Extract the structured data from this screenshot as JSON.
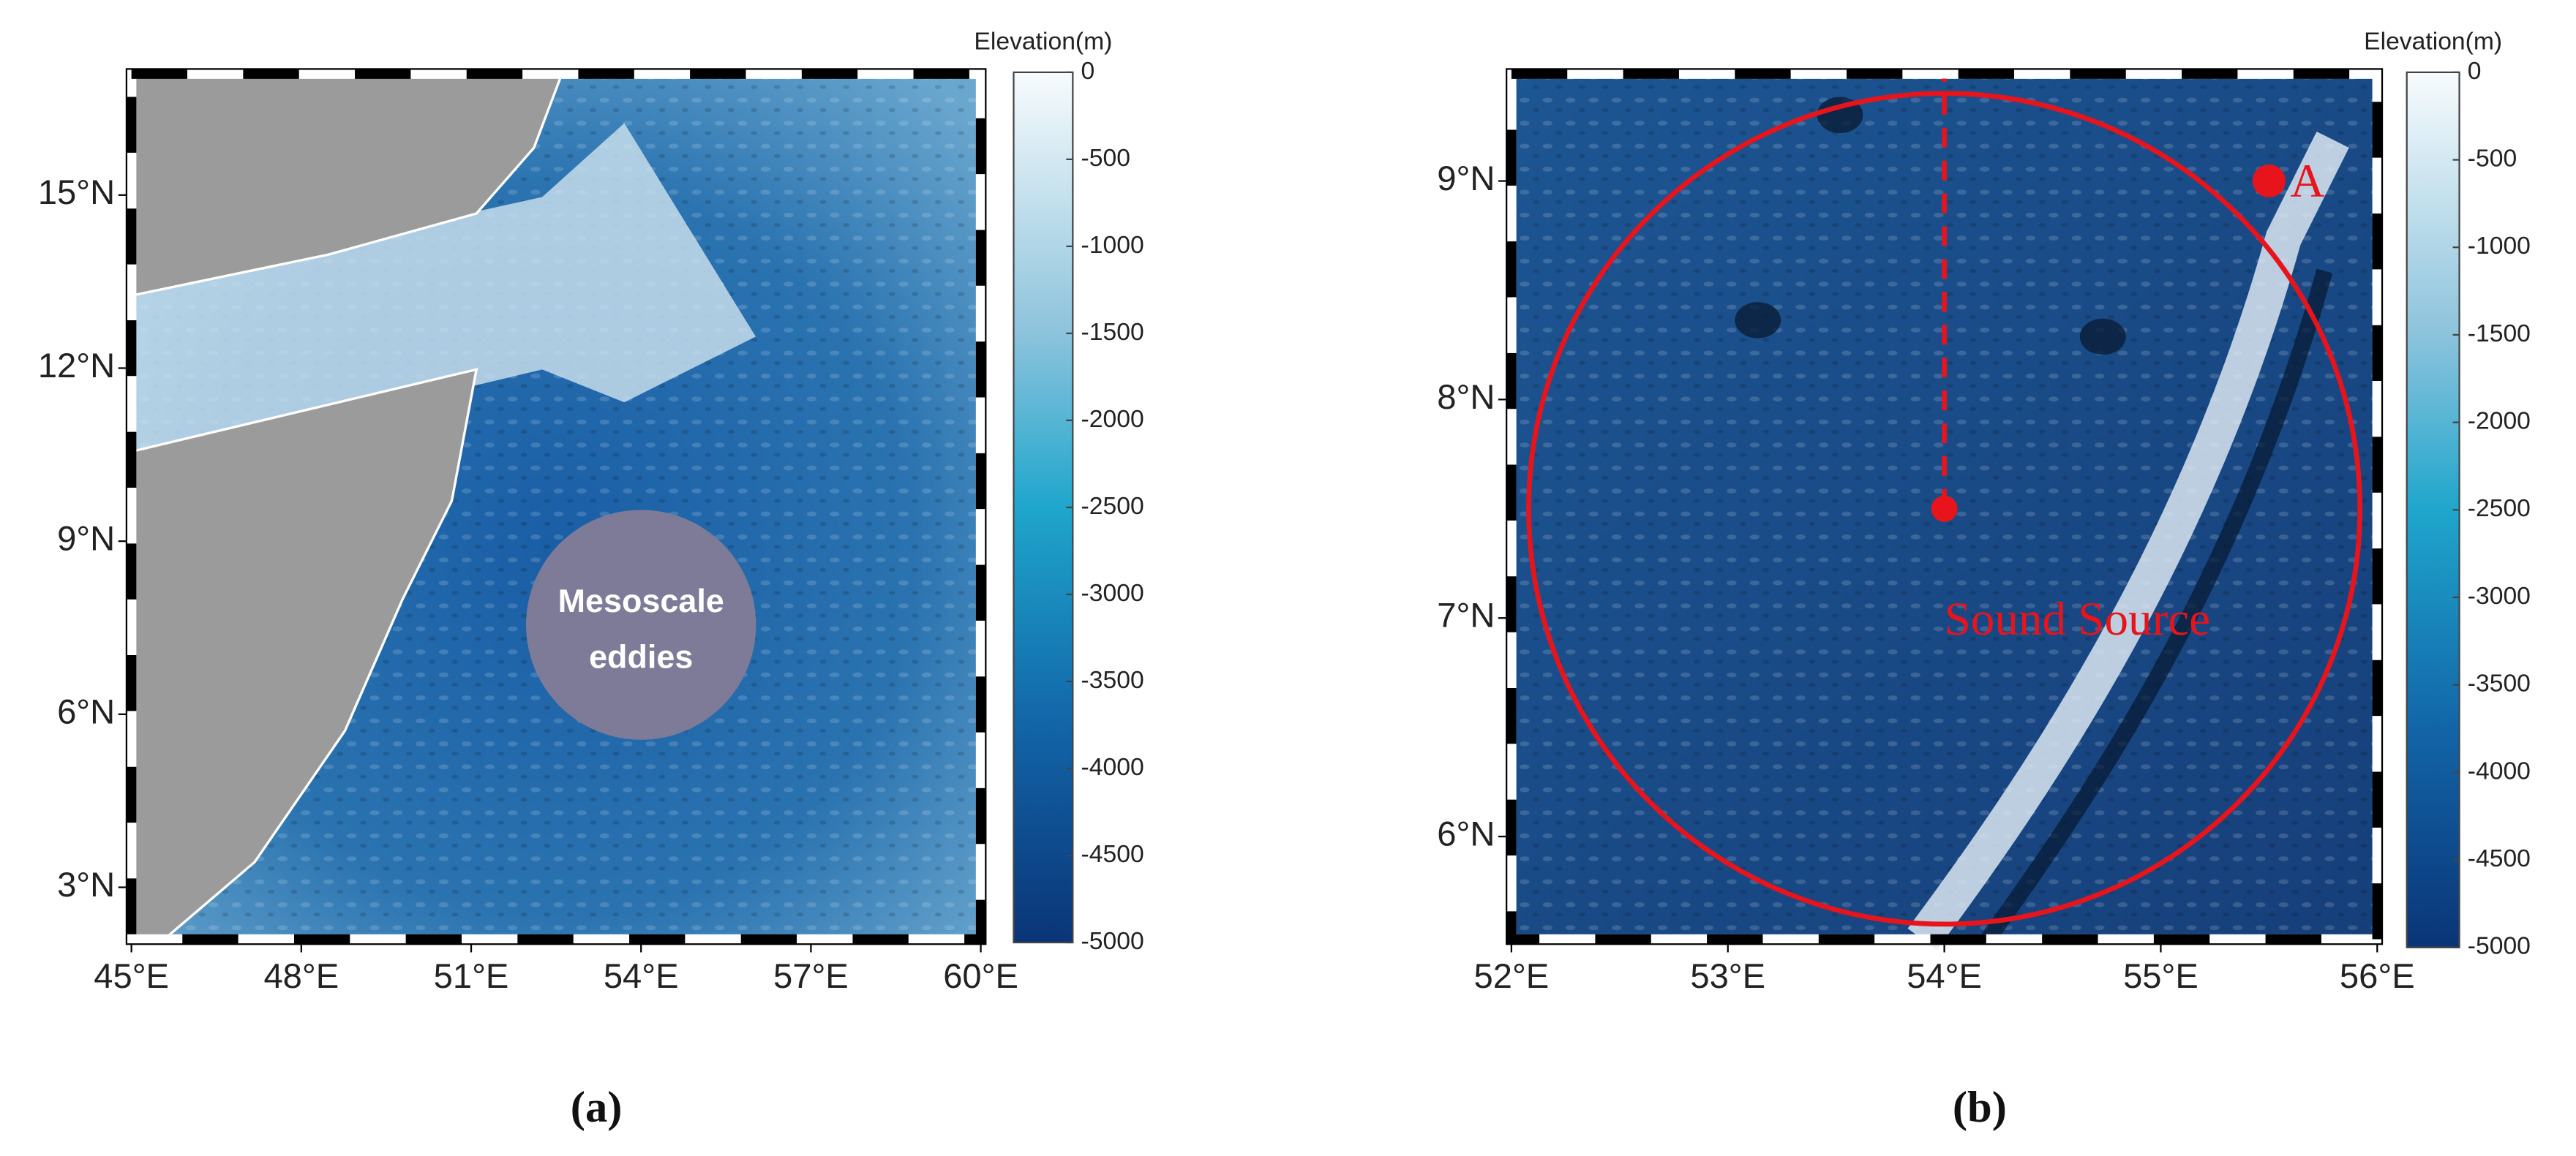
{
  "panels": [
    {
      "label": "(a)",
      "xlim": [
        45,
        60
      ],
      "ylim": [
        2.1,
        17.1
      ],
      "xticks": [
        {
          "value": 45,
          "label": "45°E"
        },
        {
          "value": 48,
          "label": "48°E"
        },
        {
          "value": 51,
          "label": "51°E"
        },
        {
          "value": 54,
          "label": "54°E"
        },
        {
          "value": 57,
          "label": "57°E"
        },
        {
          "value": 60,
          "label": "60°E"
        }
      ],
      "yticks": [
        {
          "value": 3,
          "label": "3°N"
        },
        {
          "value": 6,
          "label": "6°N"
        },
        {
          "value": 9,
          "label": "9°N"
        },
        {
          "value": 12,
          "label": "12°N"
        },
        {
          "value": 15,
          "label": "15°N"
        }
      ],
      "colorbar": {
        "title": "Elevation(m)",
        "lim": [
          -5000,
          0
        ],
        "ticks": [
          0,
          -500,
          -1000,
          -1500,
          -2000,
          -2500,
          -3000,
          -3500,
          -4000,
          -4500,
          -5000
        ]
      },
      "eddy": {
        "lon": 54.0,
        "lat": 7.55,
        "lines": [
          "Mesoscale",
          "eddies"
        ]
      }
    },
    {
      "label": "(b)",
      "xlim": [
        52,
        56
      ],
      "ylim": [
        5.53,
        9.49
      ],
      "xticks": [
        {
          "value": 52,
          "label": "52°E"
        },
        {
          "value": 53,
          "label": "53°E"
        },
        {
          "value": 54,
          "label": "54°E"
        },
        {
          "value": 55,
          "label": "55°E"
        },
        {
          "value": 56,
          "label": "56°E"
        }
      ],
      "yticks": [
        {
          "value": 6,
          "label": "6°N"
        },
        {
          "value": 7,
          "label": "7°N"
        },
        {
          "value": 8,
          "label": "8°N"
        },
        {
          "value": 9,
          "label": "9°N"
        }
      ],
      "colorbar": {
        "title": "Elevation(m)",
        "lim": [
          -5000,
          0
        ],
        "ticks": [
          0,
          -500,
          -1000,
          -1500,
          -2000,
          -2500,
          -3000,
          -3500,
          -4000,
          -4500,
          -5000
        ]
      },
      "sound_source": {
        "label": "Sound Source",
        "lon": 54,
        "lat": 7.5
      },
      "point_a": {
        "label": "A",
        "lon": 55.5,
        "lat": 9.0
      }
    }
  ]
}
